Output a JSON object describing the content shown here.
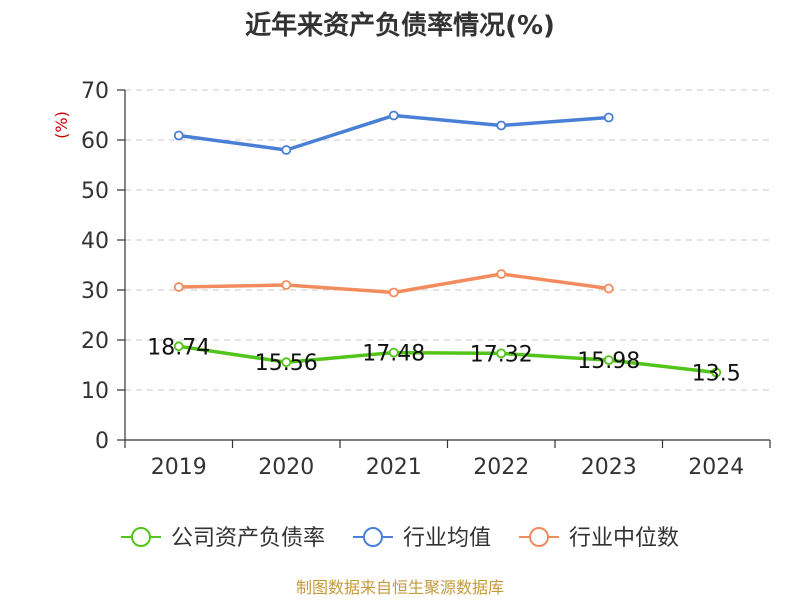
{
  "chart_data": {
    "type": "line",
    "title": "近年来资产负债率情况(%)",
    "ylabel": "(%)",
    "categories": [
      "2019",
      "2020",
      "2021",
      "2022",
      "2023",
      "2024"
    ],
    "ylim": [
      0,
      70
    ],
    "yticks": [
      0,
      10,
      20,
      30,
      40,
      50,
      60,
      70
    ],
    "grid": true,
    "legend_position": "bottom",
    "series": [
      {
        "name": "公司资产负债率",
        "color": "#52c41a",
        "values": [
          18.74,
          15.56,
          17.48,
          17.32,
          15.98,
          13.5
        ],
        "labels": [
          "18.74",
          "15.56",
          "17.48",
          "17.32",
          "15.98",
          "13.5"
        ]
      },
      {
        "name": "行业均值",
        "color": "#4a7fd6",
        "values": [
          60.9,
          58.0,
          64.9,
          62.9,
          64.5,
          null
        ]
      },
      {
        "name": "行业中位数",
        "color": "#f28c5e",
        "values": [
          30.6,
          31.0,
          29.5,
          33.2,
          30.3,
          null
        ]
      }
    ]
  },
  "footer": {
    "source": "制图数据来自恒生聚源数据库"
  }
}
